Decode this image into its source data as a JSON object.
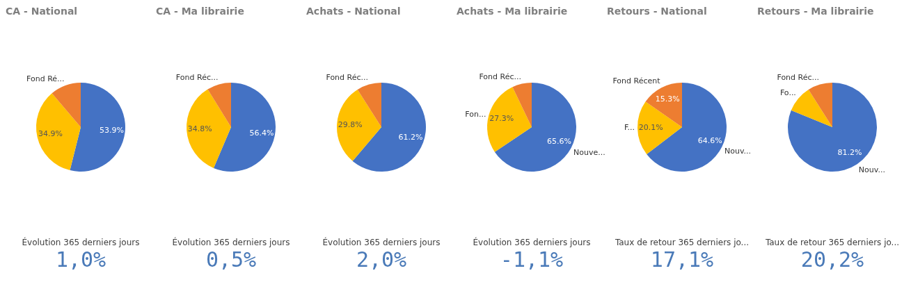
{
  "chart_data": [
    {
      "type": "pie",
      "title": "CA - National",
      "categories": [
        null,
        null,
        "Fond Ré..."
      ],
      "values": [
        53.9,
        34.9,
        11.2
      ],
      "colors": [
        "#4472c4",
        "#ffc000",
        "#ed7d31"
      ],
      "value_labels": [
        "53.9%",
        "34.9%",
        null
      ],
      "annotations": [
        "Évolution 365 derniers jours",
        "1,0%"
      ]
    },
    {
      "type": "pie",
      "title": "CA - Ma librairie",
      "categories": [
        null,
        null,
        "Fond Réc..."
      ],
      "values": [
        56.4,
        34.8,
        8.8
      ],
      "colors": [
        "#4472c4",
        "#ffc000",
        "#ed7d31"
      ],
      "value_labels": [
        "56.4%",
        "34.8%",
        null
      ],
      "annotations": [
        "Évolution 365 derniers jours",
        "0,5%"
      ]
    },
    {
      "type": "pie",
      "title": "Achats - National",
      "categories": [
        null,
        null,
        "Fond Réc..."
      ],
      "values": [
        61.2,
        29.8,
        9.0
      ],
      "colors": [
        "#4472c4",
        "#ffc000",
        "#ed7d31"
      ],
      "value_labels": [
        "61.2%",
        "29.8%",
        null
      ],
      "annotations": [
        "Évolution 365 derniers jours",
        "2,0%"
      ]
    },
    {
      "type": "pie",
      "title": "Achats - Ma librairie",
      "categories": [
        "Nouve...",
        "Fon...",
        "Fond Réc..."
      ],
      "values": [
        65.6,
        27.3,
        7.1
      ],
      "colors": [
        "#4472c4",
        "#ffc000",
        "#ed7d31"
      ],
      "value_labels": [
        "65.6%",
        "27.3%",
        null
      ],
      "annotations": [
        "Évolution 365 derniers jours",
        "-1,1%"
      ]
    },
    {
      "type": "pie",
      "title": "Retours - National",
      "categories": [
        "Nouv...",
        "F...",
        "Fond Récent"
      ],
      "values": [
        64.6,
        20.1,
        15.3
      ],
      "colors": [
        "#4472c4",
        "#ffc000",
        "#ed7d31"
      ],
      "value_labels": [
        "64.6%",
        "20.1%",
        "15.3%"
      ],
      "annotations": [
        "Taux de retour 365 derniers jo...",
        "17,1%"
      ]
    },
    {
      "type": "pie",
      "title": "Retours - Ma librairie",
      "categories": [
        "Nouv...",
        "Fo...",
        "Fond Réc..."
      ],
      "values": [
        81.2,
        9.8,
        9.0
      ],
      "colors": [
        "#4472c4",
        "#ffc000",
        "#ed7d31"
      ],
      "value_labels": [
        "81.2%",
        null,
        null
      ],
      "annotations": [
        "Taux de retour 365 derniers jo...",
        "20,2%"
      ]
    }
  ]
}
